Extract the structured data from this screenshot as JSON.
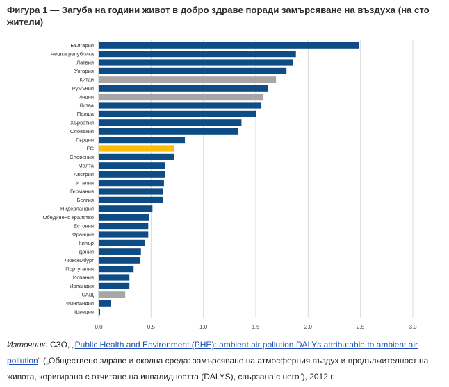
{
  "title": "Фигура 1 — Загуба на години живот в добро здраве поради замърсяване на въздуха (на сто жители)",
  "chart_data": {
    "type": "bar",
    "orientation": "horizontal",
    "title": "Фигура 1 — Загуба на години живот в добро здраве поради замърсяване на въздуха (на сто жители)",
    "xlabel": "",
    "ylabel": "",
    "xlim": [
      0,
      3.0
    ],
    "xticks": [
      "0,0",
      "0,5",
      "1,0",
      "1,5",
      "2,0",
      "2,5",
      "3,0"
    ],
    "grid": true,
    "categories": [
      "България",
      "Чешка република",
      "Латвия",
      "Унгария",
      "Китай",
      "Румъния",
      "Индия",
      "Литва",
      "Полша",
      "Хърватия",
      "Словакия",
      "Гърция",
      "ЕС",
      "Словения",
      "Малта",
      "Австрия",
      "Италия",
      "Германия",
      "Белгия",
      "Нидерландия",
      "Обединено кралство",
      "Естония",
      "Франция",
      "Кипър",
      "Дания",
      "Люксембург",
      "Португалия",
      "Испания",
      "Ирландия",
      "САЩ",
      "Финландия",
      "Швеция"
    ],
    "values": [
      2.48,
      1.88,
      1.85,
      1.79,
      1.69,
      1.61,
      1.57,
      1.55,
      1.5,
      1.36,
      1.33,
      0.82,
      0.72,
      0.72,
      0.63,
      0.63,
      0.62,
      0.61,
      0.61,
      0.51,
      0.48,
      0.47,
      0.47,
      0.44,
      0.4,
      0.39,
      0.33,
      0.29,
      0.29,
      0.25,
      0.11,
      0.01
    ],
    "bar_groups": [
      "eu",
      "eu",
      "eu",
      "eu",
      "non_eu",
      "eu",
      "non_eu",
      "eu",
      "eu",
      "eu",
      "eu",
      "eu",
      "eu_average",
      "eu",
      "eu",
      "eu",
      "eu",
      "eu",
      "eu",
      "eu",
      "eu",
      "eu",
      "eu",
      "eu",
      "eu",
      "eu",
      "eu",
      "eu",
      "eu",
      "non_eu",
      "eu",
      "eu"
    ]
  },
  "colors": {
    "eu": "#0e4c86",
    "non_eu": "#a6a6a6",
    "eu_average": "#fbbd07",
    "grid": "#d9d9d9",
    "axis": "#bfbfbf",
    "link": "#1f4fb4"
  },
  "source": {
    "label": "Източник:",
    "org": "СЗО,",
    "open_quote": "„",
    "link_text": "Public Health and Environment (PHE): ambient air pollution DALYs attributable to ambient air pollution",
    "close_quote": "“",
    "note": "(„Обществено здраве и околна среда: замърсяване на атмосферния въздух и продължителност на живота, коригирана с отчитане на инвалидността (DALYS), свързана с него“), 2012 г."
  }
}
